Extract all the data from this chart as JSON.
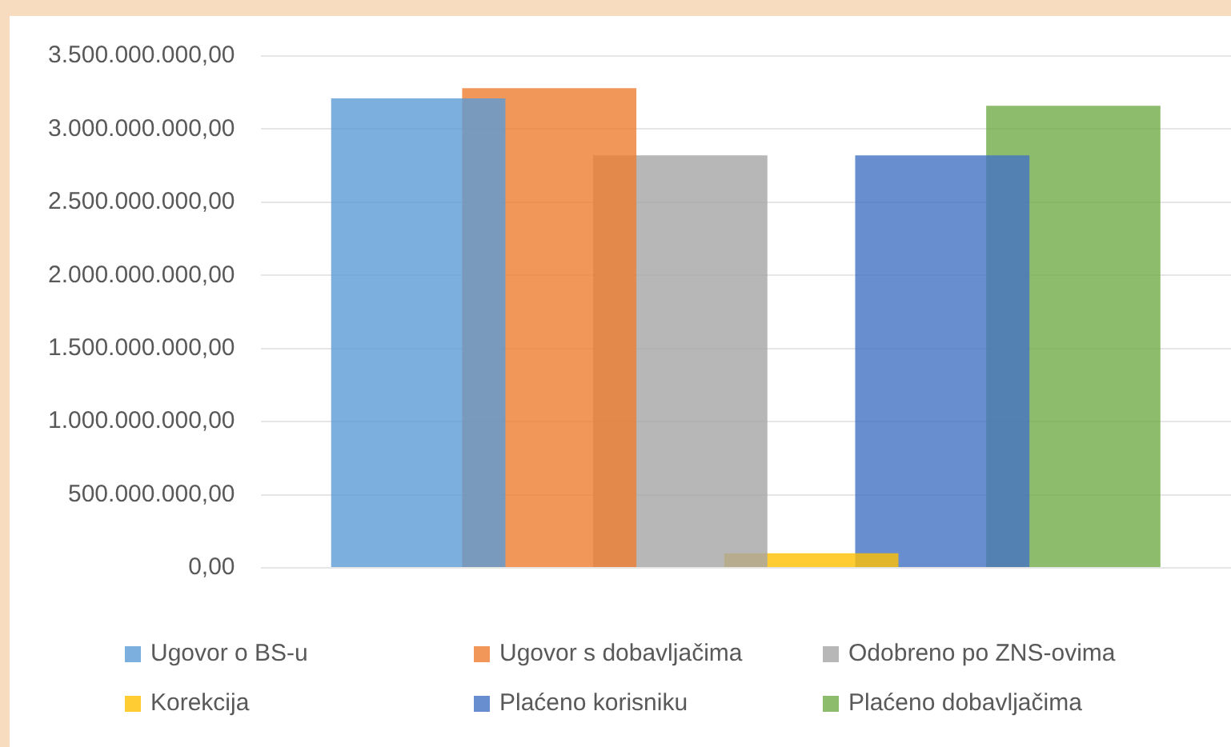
{
  "chart_data": {
    "type": "bar",
    "categories": [
      null
    ],
    "series": [
      {
        "name": "Ugovor o BS-u",
        "color": "#5b9bd5",
        "values": [
          3210000000
        ]
      },
      {
        "name": "Ugovor s dobavljačima",
        "color": "#ed7d31",
        "values": [
          3280000000
        ]
      },
      {
        "name": "Odobreno po ZNS-ovima",
        "color": "#a5a5a5",
        "values": [
          2820000000
        ]
      },
      {
        "name": "Korekcija",
        "color": "#ffc000",
        "values": [
          100000000
        ]
      },
      {
        "name": "Plaćeno korisniku",
        "color": "#4472c4",
        "values": [
          2820000000
        ]
      },
      {
        "name": "Plaćeno dobavljačima",
        "color": "#70ad47",
        "values": [
          3160000000
        ]
      }
    ],
    "ylim": [
      0,
      3500000000
    ],
    "yticks": [
      {
        "value": 0,
        "label": "0,00"
      },
      {
        "value": 500000000,
        "label": "500.000.000,00"
      },
      {
        "value": 1000000000,
        "label": "1.000.000.000,00"
      },
      {
        "value": 1500000000,
        "label": "1.500.000.000,00"
      },
      {
        "value": 2000000000,
        "label": "2.000.000.000,00"
      },
      {
        "value": 2500000000,
        "label": "2.500.000.000,00"
      },
      {
        "value": 3000000000,
        "label": "3.000.000.000,00"
      },
      {
        "value": 3500000000,
        "label": "3.500.000.000,00"
      }
    ],
    "grid": "y",
    "legend": "bottom"
  }
}
